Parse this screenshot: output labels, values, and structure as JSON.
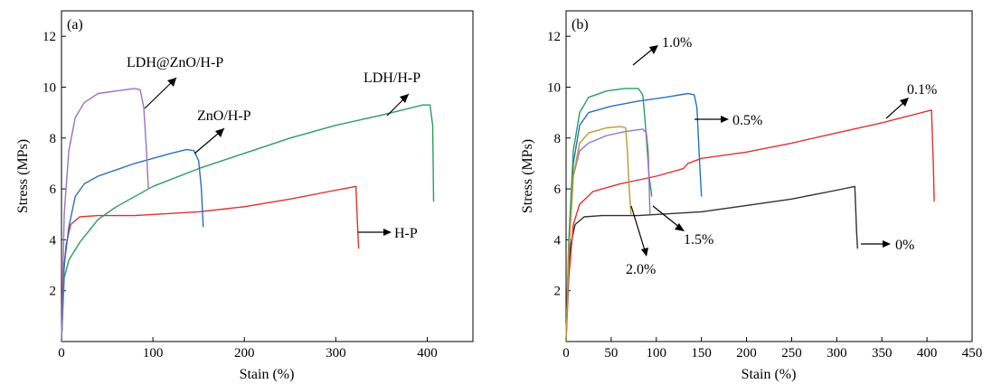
{
  "chart_data": [
    {
      "type": "line",
      "panel_label": "(a)",
      "xlabel": "Stain (%)",
      "ylabel": "Stress (MPs)",
      "xlim": [
        0,
        450
      ],
      "ylim": [
        0,
        13
      ],
      "xticks": [
        0,
        100,
        200,
        300,
        400
      ],
      "yticks": [
        2,
        4,
        6,
        8,
        10,
        12
      ],
      "grid": false,
      "series": [
        {
          "color": "#e03030",
          "points": [
            [
              0,
              0
            ],
            [
              2,
              2.5
            ],
            [
              5,
              3.8
            ],
            [
              10,
              4.6
            ],
            [
              20,
              4.9
            ],
            [
              40,
              4.95
            ],
            [
              80,
              4.95
            ],
            [
              150,
              5.1
            ],
            [
              200,
              5.3
            ],
            [
              250,
              5.6
            ],
            [
              300,
              5.95
            ],
            [
              322,
              6.1
            ],
            [
              324,
              4.4
            ],
            [
              325,
              3.65
            ]
          ]
        },
        {
          "color": "#2a9d5c",
          "points": [
            [
              0,
              0
            ],
            [
              3,
              2.5
            ],
            [
              8,
              3.2
            ],
            [
              20,
              3.9
            ],
            [
              40,
              4.8
            ],
            [
              60,
              5.3
            ],
            [
              100,
              6.1
            ],
            [
              150,
              6.8
            ],
            [
              200,
              7.4
            ],
            [
              250,
              8.0
            ],
            [
              300,
              8.5
            ],
            [
              350,
              8.9
            ],
            [
              395,
              9.3
            ],
            [
              403,
              9.3
            ],
            [
              406,
              8.5
            ],
            [
              407,
              5.5
            ]
          ]
        },
        {
          "color": "#2a6fbf",
          "points": [
            [
              0,
              0
            ],
            [
              3,
              3.0
            ],
            [
              8,
              4.5
            ],
            [
              15,
              5.7
            ],
            [
              25,
              6.2
            ],
            [
              40,
              6.5
            ],
            [
              80,
              7.0
            ],
            [
              120,
              7.4
            ],
            [
              137,
              7.55
            ],
            [
              145,
              7.5
            ],
            [
              150,
              7.1
            ],
            [
              153,
              6.0
            ],
            [
              155,
              4.5
            ]
          ]
        },
        {
          "color": "#9b6fc8",
          "points": [
            [
              0,
              0
            ],
            [
              3,
              5.0
            ],
            [
              8,
              7.5
            ],
            [
              15,
              8.8
            ],
            [
              25,
              9.4
            ],
            [
              40,
              9.75
            ],
            [
              60,
              9.85
            ],
            [
              80,
              9.95
            ],
            [
              86,
              9.9
            ],
            [
              90,
              9.2
            ],
            [
              93,
              7.5
            ],
            [
              95,
              6.0
            ]
          ]
        }
      ],
      "annotations": [
        "LDH@ZnO/H-P",
        "ZnO/H-P",
        "LDH/H-P",
        "H-P"
      ]
    },
    {
      "type": "line",
      "panel_label": "(b)",
      "xlabel": "Stain (%)",
      "ylabel": "Stress (MPs)",
      "xlim": [
        0,
        450
      ],
      "ylim": [
        0,
        13
      ],
      "xticks": [
        0,
        50,
        100,
        150,
        200,
        250,
        300,
        350,
        400,
        450
      ],
      "yticks": [
        2,
        4,
        6,
        8,
        10,
        12
      ],
      "grid": false,
      "series": [
        {
          "color": "#303030",
          "points": [
            [
              0,
              0
            ],
            [
              2,
              2.5
            ],
            [
              5,
              3.8
            ],
            [
              10,
              4.6
            ],
            [
              20,
              4.9
            ],
            [
              40,
              4.95
            ],
            [
              80,
              4.95
            ],
            [
              150,
              5.1
            ],
            [
              200,
              5.35
            ],
            [
              250,
              5.6
            ],
            [
              300,
              5.95
            ],
            [
              320,
              6.1
            ],
            [
              322,
              4.3
            ],
            [
              323,
              3.65
            ]
          ]
        },
        {
          "color": "#e03030",
          "points": [
            [
              0,
              0
            ],
            [
              3,
              2.5
            ],
            [
              8,
              4.6
            ],
            [
              15,
              5.4
            ],
            [
              30,
              5.9
            ],
            [
              60,
              6.2
            ],
            [
              100,
              6.5
            ],
            [
              130,
              6.8
            ],
            [
              135,
              7.0
            ],
            [
              150,
              7.2
            ],
            [
              200,
              7.45
            ],
            [
              250,
              7.8
            ],
            [
              300,
              8.2
            ],
            [
              350,
              8.6
            ],
            [
              405,
              9.1
            ],
            [
              407,
              7.0
            ],
            [
              408,
              5.5
            ]
          ]
        },
        {
          "color": "#2a6fbf",
          "points": [
            [
              0,
              0
            ],
            [
              3,
              3.5
            ],
            [
              8,
              7.0
            ],
            [
              15,
              8.5
            ],
            [
              25,
              9.0
            ],
            [
              50,
              9.25
            ],
            [
              80,
              9.45
            ],
            [
              110,
              9.6
            ],
            [
              135,
              9.75
            ],
            [
              142,
              9.7
            ],
            [
              145,
              9.2
            ],
            [
              148,
              7.0
            ],
            [
              150,
              5.7
            ]
          ]
        },
        {
          "color": "#2a9d5c",
          "points": [
            [
              0,
              0
            ],
            [
              3,
              4.0
            ],
            [
              8,
              7.5
            ],
            [
              15,
              9.0
            ],
            [
              25,
              9.6
            ],
            [
              45,
              9.85
            ],
            [
              65,
              9.95
            ],
            [
              80,
              9.95
            ],
            [
              85,
              9.7
            ],
            [
              88,
              8.5
            ],
            [
              92,
              6.5
            ],
            [
              95,
              5.7
            ]
          ]
        },
        {
          "color": "#9b6fc8",
          "points": [
            [
              0,
              0
            ],
            [
              3,
              3.5
            ],
            [
              8,
              6.5
            ],
            [
              15,
              7.5
            ],
            [
              25,
              7.8
            ],
            [
              45,
              8.1
            ],
            [
              65,
              8.25
            ],
            [
              85,
              8.35
            ],
            [
              89,
              8.2
            ],
            [
              91,
              7.5
            ],
            [
              93,
              5.0
            ]
          ]
        },
        {
          "color": "#b89a30",
          "points": [
            [
              0,
              0
            ],
            [
              3,
              3.5
            ],
            [
              8,
              6.5
            ],
            [
              15,
              7.8
            ],
            [
              25,
              8.2
            ],
            [
              45,
              8.4
            ],
            [
              60,
              8.45
            ],
            [
              66,
              8.4
            ],
            [
              68,
              7.5
            ],
            [
              70,
              6.0
            ],
            [
              72,
              5.0
            ]
          ]
        }
      ],
      "annotations": [
        "1.0%",
        "0.1%",
        "0.5%",
        "1.5%",
        "2.0%",
        "0%"
      ]
    }
  ]
}
